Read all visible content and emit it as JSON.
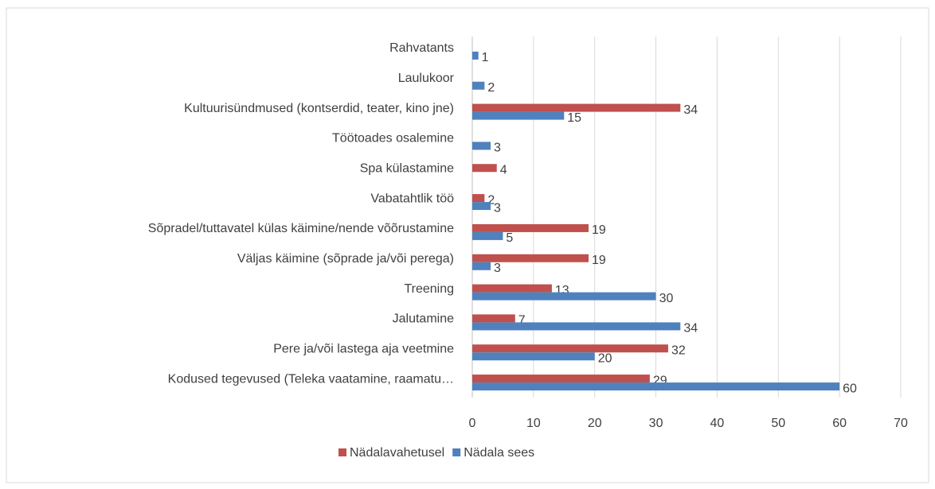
{
  "chart_data": {
    "type": "bar",
    "orientation": "horizontal",
    "categories": [
      "Rahvatants",
      "Laulukoor",
      "Kultuurisündmused (kontserdid, teater, kino jne)",
      "Töötoades osalemine",
      "Spa külastamine",
      "Vabatahtlik töö",
      "Sõpradel/tuttavatel külas käimine/nende võõrustamine",
      "Väljas käimine (sõprade ja/või perega)",
      "Treening",
      "Jalutamine",
      "Pere ja/või lastega aja veetmine",
      "Kodused tegevused (Teleka vaatamine, raamatu…"
    ],
    "series": [
      {
        "name": "Nädalavahetusel",
        "color": "#c0504d",
        "values": [
          null,
          null,
          34,
          null,
          4,
          2,
          19,
          19,
          13,
          7,
          32,
          29
        ]
      },
      {
        "name": "Nädala sees",
        "color": "#4f81bd",
        "values": [
          1,
          2,
          15,
          3,
          null,
          3,
          5,
          3,
          30,
          34,
          20,
          60
        ]
      }
    ],
    "xlim": [
      0,
      70
    ],
    "xticks": [
      0,
      10,
      20,
      30,
      40,
      50,
      60,
      70
    ],
    "grid": true,
    "legend": "bottom"
  }
}
